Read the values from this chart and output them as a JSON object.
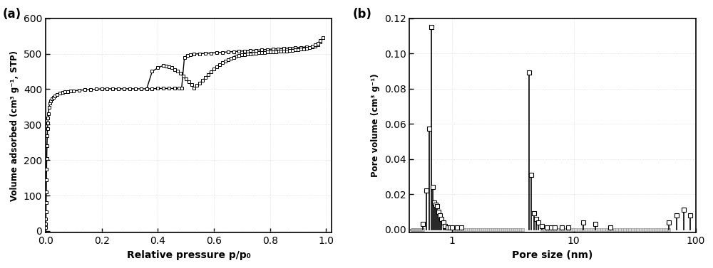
{
  "fig_width": 10.0,
  "fig_height": 3.77,
  "background_color": "#ffffff",
  "panel_a": {
    "label": "(a)",
    "xlabel": "Relative pressure p/p₀",
    "ylabel": "Volume adsorbed (cm³ g⁻¹, STP)",
    "xlim": [
      0.0,
      1.02
    ],
    "ylim": [
      -5,
      600
    ],
    "yticks": [
      0,
      100,
      200,
      300,
      400,
      500,
      600
    ],
    "xticks": [
      0.0,
      0.2,
      0.4,
      0.6,
      0.8,
      1.0
    ],
    "adsorption_x": [
      0.0005,
      0.001,
      0.0013,
      0.0016,
      0.002,
      0.0025,
      0.003,
      0.0035,
      0.004,
      0.005,
      0.006,
      0.007,
      0.008,
      0.009,
      0.01,
      0.012,
      0.015,
      0.018,
      0.022,
      0.027,
      0.032,
      0.04,
      0.05,
      0.06,
      0.07,
      0.08,
      0.09,
      0.1,
      0.12,
      0.14,
      0.16,
      0.18,
      0.2,
      0.22,
      0.24,
      0.26,
      0.28,
      0.3,
      0.32,
      0.34,
      0.36,
      0.38,
      0.4,
      0.42,
      0.44,
      0.46,
      0.475,
      0.485,
      0.495,
      0.505,
      0.515,
      0.53,
      0.55,
      0.57,
      0.59,
      0.61,
      0.63,
      0.65,
      0.67,
      0.69,
      0.71,
      0.73,
      0.75,
      0.77,
      0.79,
      0.81,
      0.83,
      0.85,
      0.87,
      0.89,
      0.91,
      0.93,
      0.95,
      0.96,
      0.97,
      0.98,
      0.99
    ],
    "adsorption_y": [
      10,
      20,
      35,
      55,
      80,
      110,
      145,
      175,
      205,
      240,
      268,
      288,
      305,
      318,
      330,
      348,
      360,
      367,
      372,
      377,
      381,
      385,
      388,
      390,
      392,
      393,
      394,
      395,
      397,
      398,
      399,
      400,
      401,
      401,
      401,
      401,
      401,
      401,
      401,
      401,
      401,
      401,
      402,
      402,
      402,
      402,
      403,
      403,
      490,
      495,
      497,
      499,
      500,
      501,
      502,
      503,
      504,
      505,
      506,
      507,
      508,
      509,
      510,
      511,
      512,
      513,
      514,
      515,
      516,
      517,
      518,
      519,
      520,
      522,
      525,
      533,
      545
    ],
    "desorption_x": [
      0.99,
      0.98,
      0.97,
      0.96,
      0.95,
      0.94,
      0.93,
      0.92,
      0.91,
      0.9,
      0.89,
      0.88,
      0.87,
      0.86,
      0.85,
      0.84,
      0.83,
      0.82,
      0.81,
      0.8,
      0.79,
      0.78,
      0.77,
      0.76,
      0.75,
      0.74,
      0.73,
      0.72,
      0.71,
      0.7,
      0.69,
      0.68,
      0.67,
      0.66,
      0.65,
      0.64,
      0.63,
      0.62,
      0.61,
      0.6,
      0.59,
      0.58,
      0.57,
      0.56,
      0.55,
      0.54,
      0.53,
      0.52,
      0.51,
      0.5,
      0.49,
      0.48,
      0.47,
      0.46,
      0.45,
      0.44,
      0.43,
      0.42,
      0.4,
      0.38,
      0.36
    ],
    "desorption_y": [
      545,
      537,
      530,
      525,
      521,
      518,
      516,
      514,
      513,
      512,
      511,
      510,
      509,
      508,
      508,
      507,
      507,
      506,
      506,
      505,
      505,
      504,
      503,
      503,
      502,
      501,
      500,
      499,
      498,
      497,
      495,
      493,
      490,
      487,
      483,
      479,
      474,
      469,
      463,
      456,
      449,
      441,
      433,
      425,
      417,
      410,
      403,
      412,
      420,
      428,
      436,
      444,
      450,
      455,
      460,
      463,
      465,
      467,
      460,
      450,
      400
    ],
    "marker": "s",
    "marker_size": 3.5,
    "marker_facecolor": "white",
    "marker_edgecolor": "black",
    "line_color": "black",
    "line_width": 1.0
  },
  "panel_b": {
    "label": "(b)",
    "xlabel": "Pore size (nm)",
    "ylabel": "Pore volume (cm³ g⁻¹)",
    "xlim": [
      0.45,
      100
    ],
    "ylim": [
      -0.002,
      0.12
    ],
    "yticks": [
      0.0,
      0.02,
      0.04,
      0.06,
      0.08,
      0.1,
      0.12
    ],
    "pore_sizes": [
      0.58,
      0.62,
      0.65,
      0.68,
      0.7,
      0.72,
      0.74,
      0.76,
      0.78,
      0.8,
      0.82,
      0.85,
      0.88,
      0.92,
      0.96,
      1.0,
      1.1,
      1.2,
      1.5,
      2.0,
      2.5,
      3.0,
      3.5,
      4.0,
      4.3,
      4.5,
      4.7,
      4.9,
      5.1,
      5.5,
      6.0,
      6.5,
      7.0,
      8.0,
      9.0,
      12.0,
      15.0,
      20.0,
      60.0,
      70.0,
      80.0,
      90.0
    ],
    "pore_volumes": [
      0.003,
      0.022,
      0.057,
      0.115,
      0.024,
      0.015,
      0.014,
      0.013,
      0.01,
      0.008,
      0.006,
      0.004,
      0.002,
      0.001,
      0.001,
      0.001,
      0.001,
      0.001,
      0.0,
      0.0,
      0.0,
      0.0,
      0.0,
      0.0,
      0.089,
      0.031,
      0.009,
      0.006,
      0.004,
      0.002,
      0.001,
      0.001,
      0.001,
      0.001,
      0.001,
      0.004,
      0.003,
      0.001,
      0.004,
      0.008,
      0.011,
      0.008
    ],
    "marker": "s",
    "marker_size": 4,
    "marker_facecolor": "white",
    "marker_edgecolor": "black",
    "line_color": "black",
    "line_width": 1.2,
    "zero_marker_x": [
      0.48,
      0.5,
      0.52,
      0.54,
      0.56,
      1.3,
      1.5,
      1.7,
      2.0,
      2.3,
      2.6,
      3.0,
      3.4,
      5.8,
      6.5,
      7.5,
      8.5,
      9.5,
      11.0,
      13.0,
      16.0,
      20.0,
      25.0,
      30.0,
      35.0,
      40.0,
      45.0,
      50.0,
      55.0
    ],
    "zero_marker_size": 3
  }
}
